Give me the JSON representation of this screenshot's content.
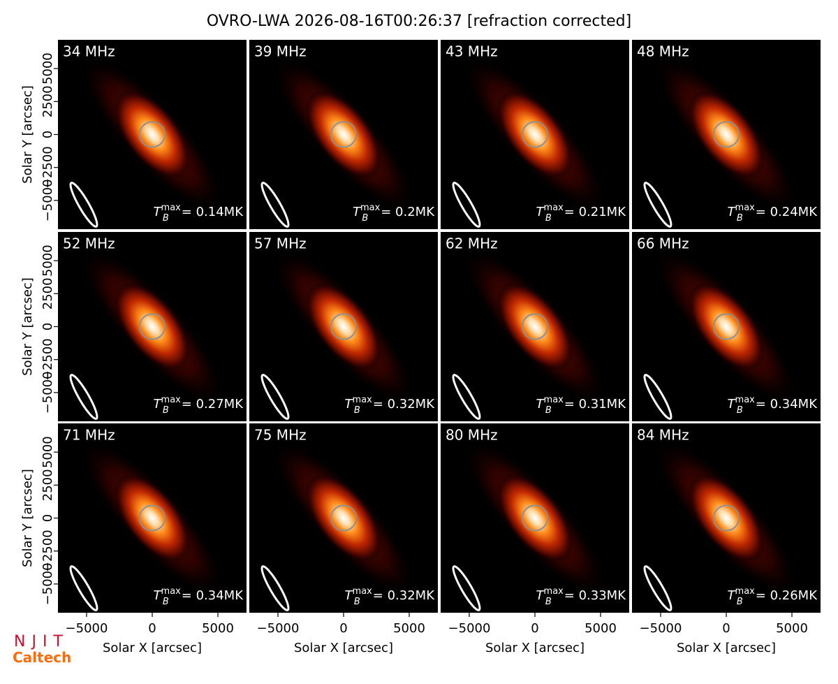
{
  "chart_data": {
    "type": "image-grid",
    "title": "OVRO-LWA 2026-08-16T00:26:37 [refraction corrected]",
    "xlabel": "Solar X [arcsec]",
    "ylabel": "Solar Y [arcsec]",
    "xlim": [
      -7180,
      7180
    ],
    "ylim": [
      -7180,
      7180
    ],
    "xticks": [
      {
        "value": -5000,
        "label": "−5000"
      },
      0,
      5000
    ],
    "yticks": [
      {
        "value": -5000,
        "label": "−5000"
      },
      {
        "value": -2500,
        "label": "−2500"
      },
      0,
      2500,
      5000
    ],
    "tb_symbol": {
      "base": "T",
      "sub": "B",
      "sup": "max"
    },
    "panels": [
      {
        "label": "34 MHz",
        "tb_max": "= 0.14MK"
      },
      {
        "label": "39 MHz",
        "tb_max": "= 0.2MK"
      },
      {
        "label": "43 MHz",
        "tb_max": "= 0.21MK"
      },
      {
        "label": "48 MHz",
        "tb_max": "= 0.24MK"
      },
      {
        "label": "52 MHz",
        "tb_max": "= 0.27MK"
      },
      {
        "label": "57 MHz",
        "tb_max": "= 0.32MK"
      },
      {
        "label": "62 MHz",
        "tb_max": "= 0.31MK"
      },
      {
        "label": "66 MHz",
        "tb_max": "= 0.34MK"
      },
      {
        "label": "71 MHz",
        "tb_max": "= 0.34MK"
      },
      {
        "label": "75 MHz",
        "tb_max": "= 0.32MK"
      },
      {
        "label": "80 MHz",
        "tb_max": "= 0.33MK"
      },
      {
        "label": "84 MHz",
        "tb_max": "= 0.26MK"
      }
    ]
  },
  "logos": [
    "NJIT",
    "Caltech"
  ]
}
